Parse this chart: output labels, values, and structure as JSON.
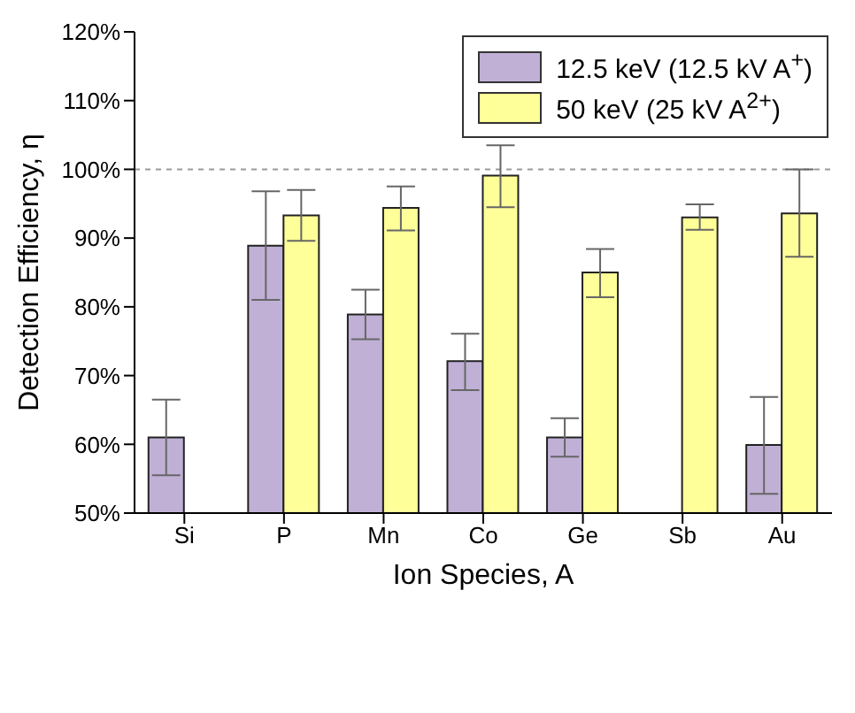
{
  "chart_data": {
    "type": "bar",
    "xlabel": "Ion Species, A",
    "ylabel": "Detection Efficiency, η",
    "categories": [
      "Si",
      "P",
      "Mn",
      "Co",
      "Ge",
      "Sb",
      "Au"
    ],
    "series": [
      {
        "name": "12.5 keV (12.5 kV A$^{+}$)",
        "color": "#c0b0d6",
        "values": [
          61,
          88.9,
          78.9,
          72.1,
          61,
          null,
          59.9
        ],
        "errors": [
          [
            55.5,
            66.5
          ],
          [
            81,
            96.8
          ],
          [
            75.3,
            82.5
          ],
          [
            67.9,
            76.1
          ],
          [
            58.2,
            63.8
          ],
          null,
          [
            52.8,
            66.9
          ]
        ]
      },
      {
        "name": "50 keV (25 kV A$^{2+}$)",
        "color": "#ffff99",
        "values": [
          null,
          93.3,
          94.4,
          99.1,
          85,
          93,
          93.6
        ],
        "errors": [
          null,
          [
            89.6,
            97
          ],
          [
            91.1,
            97.5
          ],
          [
            94.5,
            103.5
          ],
          [
            81.4,
            88.4
          ],
          [
            91.2,
            94.9
          ],
          [
            87.3,
            100
          ]
        ]
      }
    ],
    "ylim": [
      50,
      120
    ],
    "yticks": [
      {
        "value": 50,
        "label": "50%"
      },
      {
        "value": 60,
        "label": "60%"
      },
      {
        "value": 70,
        "label": "70%"
      },
      {
        "value": 80,
        "label": "80%"
      },
      {
        "value": 90,
        "label": "90%"
      },
      {
        "value": 100,
        "label": "100%"
      },
      {
        "value": 110,
        "label": "110%"
      },
      {
        "value": 120,
        "label": "120%"
      }
    ],
    "ref_lines": [
      {
        "axis": "y",
        "value": 100,
        "color": "#999999",
        "line_style": "dashed"
      }
    ],
    "grid": false,
    "legend": "top right"
  }
}
